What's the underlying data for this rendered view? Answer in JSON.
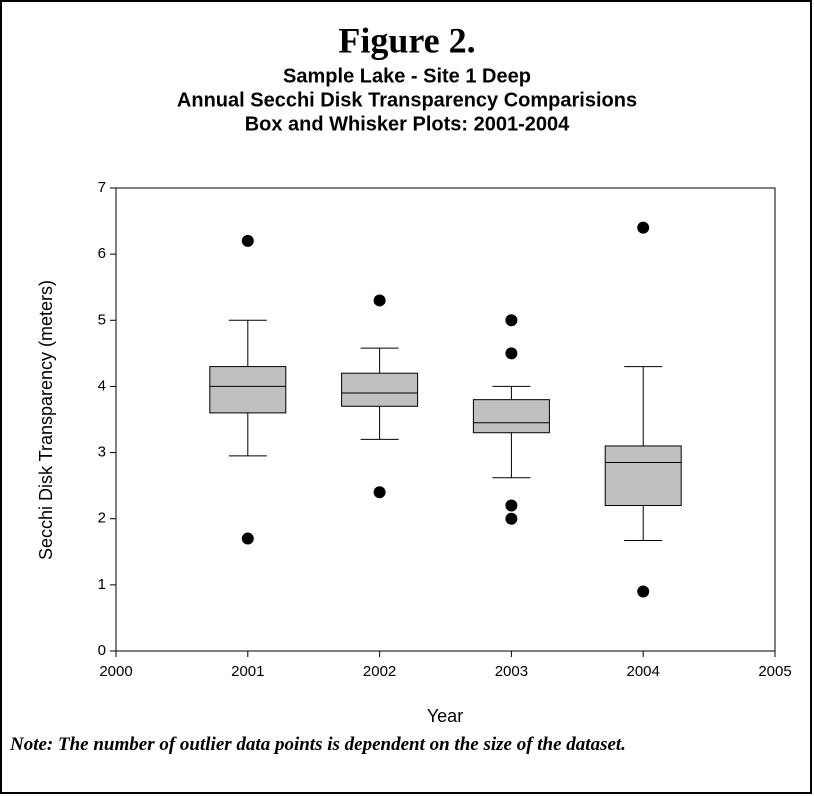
{
  "chart_data": {
    "type": "box",
    "title": "Figure 2.",
    "subtitle": [
      "Sample Lake - Site 1 Deep",
      "Annual Secchi Disk Transparency Comparisions",
      "Box and Whisker Plots: 2001-2004"
    ],
    "xlabel": "Year",
    "ylabel": "Secchi Disk Transparency (meters)",
    "note": "Note: The number of outlier data points is dependent on the size of the dataset.",
    "xlim": [
      2000,
      2005
    ],
    "xticks": [
      2000,
      2001,
      2002,
      2003,
      2004,
      2005
    ],
    "ylim": [
      0,
      7
    ],
    "yticks": [
      0,
      1,
      2,
      3,
      4,
      5,
      6,
      7
    ],
    "color": "#c0c0c0",
    "boxes": [
      {
        "x": 2001,
        "whisker_low": 2.95,
        "q1": 3.6,
        "median": 4.0,
        "q3": 4.3,
        "whisker_high": 5.0,
        "outliers": [
          6.2,
          1.7
        ]
      },
      {
        "x": 2002,
        "whisker_low": 3.2,
        "q1": 3.7,
        "median": 3.9,
        "q3": 4.2,
        "whisker_high": 4.58,
        "outliers": [
          5.3,
          2.4
        ]
      },
      {
        "x": 2003,
        "whisker_low": 2.62,
        "q1": 3.3,
        "median": 3.45,
        "q3": 3.8,
        "whisker_high": 4.0,
        "outliers": [
          5.0,
          4.5,
          2.2,
          2.0
        ]
      },
      {
        "x": 2004,
        "whisker_low": 1.67,
        "q1": 2.2,
        "median": 2.85,
        "q3": 3.1,
        "whisker_high": 4.3,
        "outliers": [
          6.4,
          0.9
        ]
      }
    ]
  }
}
